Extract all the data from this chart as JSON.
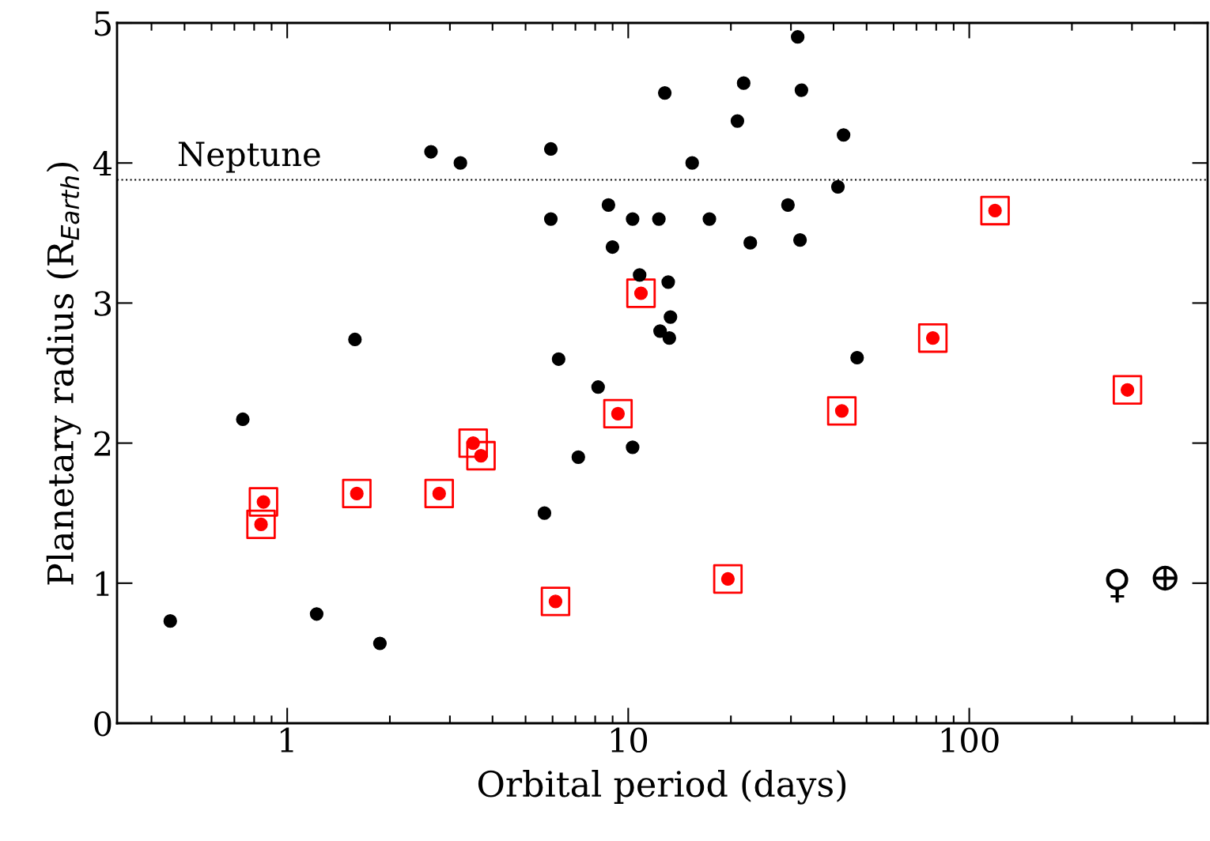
{
  "chart_data": {
    "type": "scatter",
    "xlabel": "Orbital period (days)",
    "ylabel": "Planetary radius (R$_{Earth}$)",
    "log": "x",
    "xlim": [
      0.317,
      500
    ],
    "xticks": [
      1,
      10,
      100
    ],
    "ylim": [
      0,
      5
    ],
    "yticks": [
      0,
      1,
      2,
      3,
      4,
      5
    ],
    "grid": false,
    "ref_lines": [
      {
        "axis": "y",
        "value": 3.88,
        "label": "Neptune",
        "line_style": "dotted",
        "color": "#000000"
      }
    ],
    "annotations": [
      "♀",
      "⊕"
    ],
    "series": [
      {
        "color": "#000000",
        "marker": "circle",
        "x": [
          0.454,
          0.741,
          1.22,
          1.58,
          1.87,
          2.64,
          3.22,
          5.68,
          5.93,
          5.93,
          6.25,
          7.14,
          8.16,
          8.75,
          8.99,
          10.3,
          10.3,
          10.8,
          12.3,
          12.4,
          12.8,
          13.1,
          13.3,
          13.2,
          15.4,
          17.3,
          20.9,
          21.8,
          22.8,
          29.4,
          31.4,
          31.9,
          32.2,
          41.2,
          42.8,
          46.9
        ],
        "values": [
          0.73,
          2.17,
          0.78,
          2.74,
          0.57,
          4.08,
          4.0,
          1.5,
          4.1,
          3.6,
          2.6,
          1.9,
          2.4,
          3.7,
          3.4,
          3.6,
          1.97,
          3.2,
          3.6,
          2.8,
          4.5,
          3.15,
          2.9,
          2.75,
          4.0,
          3.6,
          4.3,
          4.57,
          3.43,
          3.7,
          4.9,
          3.45,
          4.52,
          3.83,
          4.2,
          2.61
        ]
      },
      {
        "color": "#ff0000",
        "marker": "circle",
        "x": [
          0.852,
          0.838,
          1.6,
          2.79,
          3.51,
          3.7,
          6.12,
          9.33,
          10.9,
          19.6,
          42.3,
          78.2,
          119,
          291
        ],
        "values": [
          1.58,
          1.42,
          1.64,
          1.64,
          2.0,
          1.91,
          0.87,
          2.21,
          3.07,
          1.03,
          2.23,
          2.75,
          3.66,
          2.38
        ]
      }
    ]
  }
}
